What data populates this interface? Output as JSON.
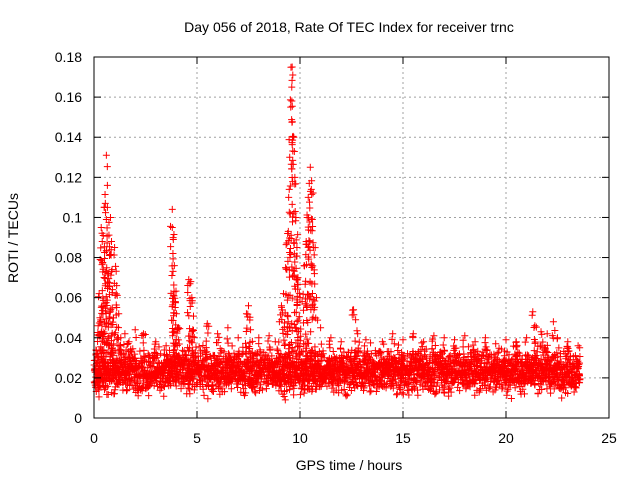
{
  "chart_data": {
    "type": "scatter",
    "title": "Day 056 of 2018, Rate Of TEC Index for receiver trnc",
    "xlabel": "GPS time / hours",
    "ylabel": "ROTI / TECUs",
    "xlim": [
      0,
      25
    ],
    "ylim": [
      0,
      0.18
    ],
    "xticks": [
      0,
      5,
      10,
      15,
      20,
      25
    ],
    "yticks": [
      0,
      0.02,
      0.04,
      0.06,
      0.08,
      0.1,
      0.12,
      0.14,
      0.16,
      0.18
    ],
    "xtick_labels": [
      "0",
      "5",
      "10",
      "15",
      "20",
      "25"
    ],
    "ytick_labels": [
      "0",
      "0.02",
      "0.04",
      "0.06",
      "0.08",
      "0.1",
      "0.12",
      "0.14",
      "0.16",
      "0.18"
    ],
    "grid": true,
    "marker": "+",
    "color": "#ff0000",
    "x_data_range": [
      0,
      23.6
    ],
    "baseline_band": [
      0.008,
      0.035
    ],
    "series": [
      {
        "name": "ROTI",
        "points": [
          [
            0.1,
            0.032
          ],
          [
            0.2,
            0.046
          ],
          [
            0.25,
            0.062
          ],
          [
            0.3,
            0.079
          ],
          [
            0.35,
            0.095
          ],
          [
            0.4,
            0.088
          ],
          [
            0.45,
            0.091
          ],
          [
            0.5,
            0.105
          ],
          [
            0.55,
            0.107
          ],
          [
            0.6,
            0.131
          ],
          [
            0.6,
            0.099
          ],
          [
            0.65,
            0.116
          ],
          [
            0.7,
            0.072
          ],
          [
            0.75,
            0.081
          ],
          [
            0.8,
            0.1
          ],
          [
            0.85,
            0.088
          ],
          [
            0.9,
            0.064
          ],
          [
            1.0,
            0.085
          ],
          [
            1.1,
            0.066
          ],
          [
            1.2,
            0.052
          ],
          [
            1.3,
            0.04
          ],
          [
            1.5,
            0.042
          ],
          [
            1.7,
            0.038
          ],
          [
            2.0,
            0.044
          ],
          [
            2.4,
            0.042
          ],
          [
            3.0,
            0.038
          ],
          [
            3.5,
            0.036
          ],
          [
            3.8,
            0.104
          ],
          [
            3.8,
            0.095
          ],
          [
            3.85,
            0.089
          ],
          [
            3.9,
            0.076
          ],
          [
            3.95,
            0.058
          ],
          [
            4.0,
            0.052
          ],
          [
            4.1,
            0.045
          ],
          [
            4.6,
            0.069
          ],
          [
            4.7,
            0.068
          ],
          [
            4.75,
            0.06
          ],
          [
            4.8,
            0.044
          ],
          [
            5.5,
            0.047
          ],
          [
            6.0,
            0.042
          ],
          [
            6.5,
            0.045
          ],
          [
            7.0,
            0.04
          ],
          [
            7.4,
            0.052
          ],
          [
            7.5,
            0.056
          ],
          [
            7.6,
            0.044
          ],
          [
            8.0,
            0.04
          ],
          [
            8.5,
            0.041
          ],
          [
            8.8,
            0.038
          ],
          [
            9.0,
            0.048
          ],
          [
            9.1,
            0.056
          ],
          [
            9.2,
            0.062
          ],
          [
            9.3,
            0.075
          ],
          [
            9.4,
            0.092
          ],
          [
            9.45,
            0.11
          ],
          [
            9.5,
            0.13
          ],
          [
            9.55,
            0.155
          ],
          [
            9.6,
            0.165
          ],
          [
            9.62,
            0.175
          ],
          [
            9.65,
            0.171
          ],
          [
            9.7,
            0.14
          ],
          [
            9.75,
            0.12
          ],
          [
            9.8,
            0.1
          ],
          [
            9.85,
            0.085
          ],
          [
            9.9,
            0.07
          ],
          [
            10.0,
            0.06
          ],
          [
            10.1,
            0.058
          ],
          [
            10.2,
            0.076
          ],
          [
            10.3,
            0.088
          ],
          [
            10.35,
            0.1
          ],
          [
            10.4,
            0.11
          ],
          [
            10.45,
            0.117
          ],
          [
            10.5,
            0.125
          ],
          [
            10.55,
            0.114
          ],
          [
            10.6,
            0.099
          ],
          [
            10.65,
            0.085
          ],
          [
            10.7,
            0.072
          ],
          [
            10.8,
            0.06
          ],
          [
            11.0,
            0.045
          ],
          [
            11.5,
            0.04
          ],
          [
            12.0,
            0.038
          ],
          [
            12.6,
            0.054
          ],
          [
            12.7,
            0.049
          ],
          [
            12.8,
            0.042
          ],
          [
            13.2,
            0.039
          ],
          [
            14.0,
            0.038
          ],
          [
            14.5,
            0.042
          ],
          [
            15.0,
            0.039
          ],
          [
            15.5,
            0.042
          ],
          [
            16.0,
            0.038
          ],
          [
            16.5,
            0.041
          ],
          [
            17.0,
            0.04
          ],
          [
            17.5,
            0.039
          ],
          [
            18.0,
            0.041
          ],
          [
            18.5,
            0.038
          ],
          [
            19.0,
            0.04
          ],
          [
            19.5,
            0.037
          ],
          [
            20.0,
            0.039
          ],
          [
            20.5,
            0.038
          ],
          [
            21.0,
            0.04
          ],
          [
            21.3,
            0.053
          ],
          [
            21.4,
            0.046
          ],
          [
            21.7,
            0.043
          ],
          [
            22.0,
            0.042
          ],
          [
            22.3,
            0.048
          ],
          [
            22.5,
            0.04
          ],
          [
            23.0,
            0.038
          ],
          [
            23.5,
            0.036
          ]
        ]
      }
    ]
  }
}
